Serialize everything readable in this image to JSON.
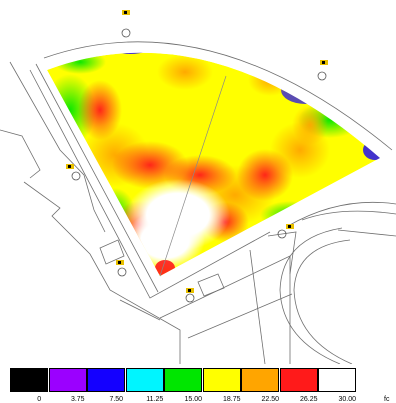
{
  "legend": {
    "unit": "fc",
    "bins": [
      {
        "label": "0",
        "color": "#000000"
      },
      {
        "label": "3.75",
        "color": "#9b00ff"
      },
      {
        "label": "7.50",
        "color": "#1400ff"
      },
      {
        "label": "11.25",
        "color": "#00f5ff"
      },
      {
        "label": "15.00",
        "color": "#00e600"
      },
      {
        "label": "18.75",
        "color": "#ffff00"
      },
      {
        "label": "22.50",
        "color": "#ffa500"
      },
      {
        "label": "26.25",
        "color": "#ff1a1a"
      },
      {
        "label": "30.00",
        "color": "#ffffff"
      }
    ]
  },
  "colors": {
    "background": "#ffffff",
    "site_lines": "#6f6f6f",
    "fixture": "#e8c000"
  }
}
